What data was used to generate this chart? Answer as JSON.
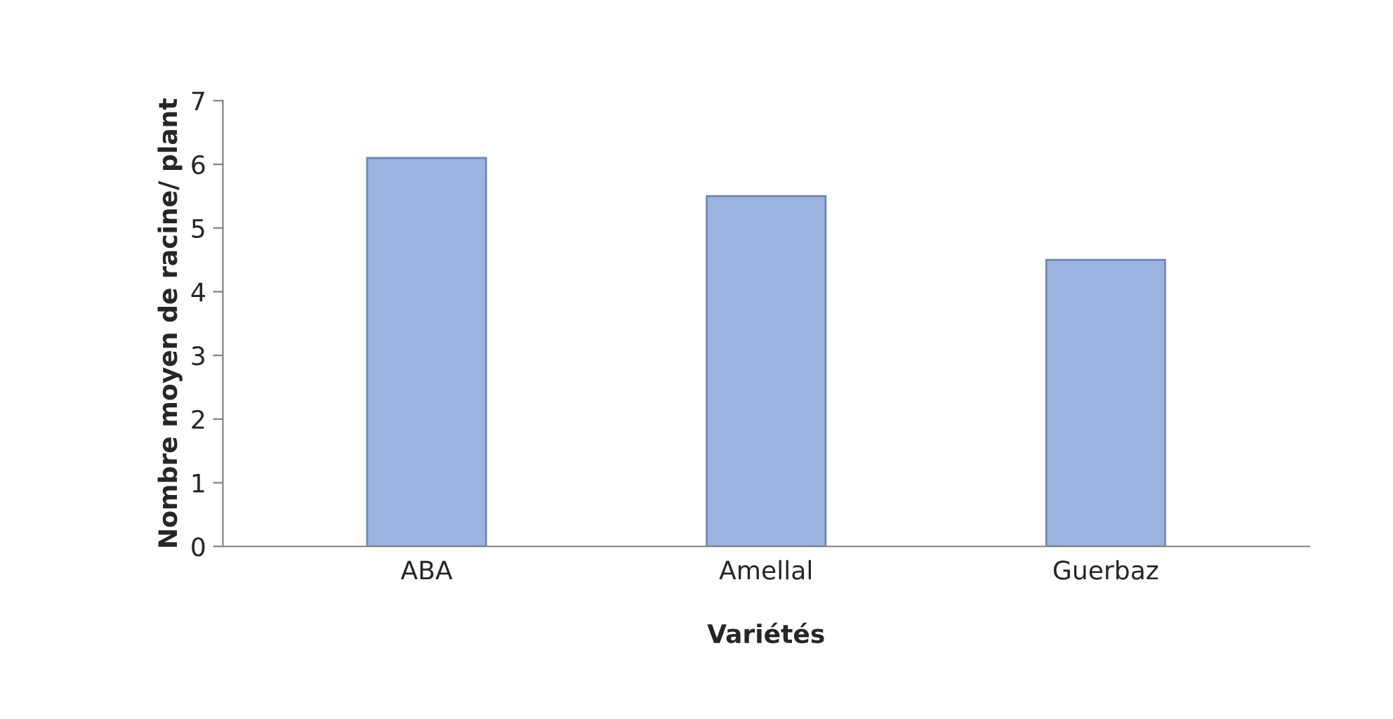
{
  "chart_data": {
    "type": "bar",
    "xlabel": "Variétés",
    "ylabel": "Nombre moyen de racine/ plant",
    "categories": [
      "ABA",
      "Amellal",
      "Guerbaz"
    ],
    "values": [
      6.1,
      5.5,
      4.5
    ],
    "color": "#9db3e0",
    "ylim": [
      0,
      7
    ],
    "yticks": [
      0,
      1,
      2,
      3,
      4,
      5,
      6,
      7
    ],
    "grid": false
  }
}
